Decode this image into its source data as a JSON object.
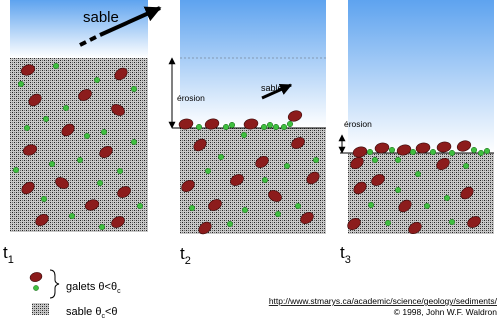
{
  "panels": [
    {
      "time_label": "t",
      "time_subscript": "1",
      "sand_label": "sable",
      "erosion_label": ""
    },
    {
      "time_label": "t",
      "time_subscript": "2",
      "sand_label": "sable",
      "erosion_label": "érosion"
    },
    {
      "time_label": "t",
      "time_subscript": "3",
      "sand_label": "",
      "erosion_label": "érosion"
    }
  ],
  "legend": {
    "pebbles_label": "galets θ<θ",
    "pebbles_subscript": "c",
    "sand_label_part1": "sable θ",
    "sand_subscript": "c",
    "sand_label_part2": "<θ"
  },
  "source_url": "http://www.stmarys.ca/academic/science/geology/sediments/",
  "copyright": "© 1998, John W.F. Waldron",
  "colors": {
    "sky_top": "#5ea3ef",
    "sky_bottom": "#ffffff",
    "pebble": "#8c1c1c",
    "grain": "#3fbf3f",
    "sediment_base": "#c8c8c8"
  }
}
